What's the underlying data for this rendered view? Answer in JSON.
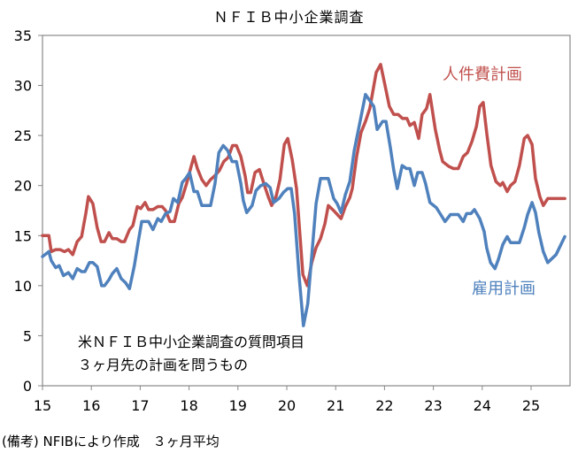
{
  "chart_data": {
    "type": "line",
    "title": "ＮＦＩＢ中小企業調査",
    "xlabel": "",
    "ylabel": "",
    "xlim": [
      15,
      25.75
    ],
    "ylim": [
      0,
      35
    ],
    "yticks": [
      0,
      5,
      10,
      15,
      20,
      25,
      30,
      35
    ],
    "xticks": [
      15,
      16,
      17,
      18,
      19,
      20,
      21,
      22,
      23,
      24,
      25
    ],
    "grid": false,
    "annotation": [
      "米ＮＦＩＢ中小企業調査の質問項目",
      "３ヶ月先の計画を問うもの"
    ],
    "footnote": "(備考) NFIBにより作成　３ヶ月平均",
    "series": [
      {
        "name": "人件費計画",
        "color": "#c0504d",
        "legend_position": "upper-right",
        "points": [
          [
            15.0,
            15
          ],
          [
            15.13,
            15
          ],
          [
            15.18,
            13.4
          ],
          [
            15.27,
            13.6
          ],
          [
            15.36,
            13.6
          ],
          [
            15.45,
            13.4
          ],
          [
            15.53,
            13.6
          ],
          [
            15.62,
            13.1
          ],
          [
            15.71,
            14.4
          ],
          [
            15.8,
            14.9
          ],
          [
            15.89,
            17.3
          ],
          [
            15.94,
            18.9
          ],
          [
            16.03,
            18.2
          ],
          [
            16.12,
            15.8
          ],
          [
            16.2,
            14.4
          ],
          [
            16.27,
            14.4
          ],
          [
            16.36,
            15.3
          ],
          [
            16.43,
            14.7
          ],
          [
            16.52,
            14.7
          ],
          [
            16.61,
            14.4
          ],
          [
            16.68,
            14.4
          ],
          [
            16.78,
            15.6
          ],
          [
            16.85,
            16
          ],
          [
            16.94,
            17.9
          ],
          [
            17.01,
            17.7
          ],
          [
            17.1,
            18.3
          ],
          [
            17.17,
            17.6
          ],
          [
            17.26,
            17.6
          ],
          [
            17.36,
            17.9
          ],
          [
            17.45,
            17.9
          ],
          [
            17.52,
            17.5
          ],
          [
            17.61,
            16.4
          ],
          [
            17.7,
            16.4
          ],
          [
            17.79,
            18.2
          ],
          [
            17.86,
            18.8
          ],
          [
            17.95,
            20.2
          ],
          [
            18.03,
            21.7
          ],
          [
            18.1,
            22.9
          ],
          [
            18.17,
            21.7
          ],
          [
            18.26,
            20.6
          ],
          [
            18.35,
            20
          ],
          [
            18.44,
            20.6
          ],
          [
            18.53,
            21
          ],
          [
            18.62,
            21.5
          ],
          [
            18.71,
            22.4
          ],
          [
            18.8,
            22.8
          ],
          [
            18.89,
            24
          ],
          [
            18.97,
            24
          ],
          [
            19.06,
            22.9
          ],
          [
            19.15,
            20.9
          ],
          [
            19.2,
            19.3
          ],
          [
            19.26,
            19.3
          ],
          [
            19.35,
            21.3
          ],
          [
            19.44,
            21.6
          ],
          [
            19.53,
            20.2
          ],
          [
            19.62,
            18.9
          ],
          [
            19.69,
            18
          ],
          [
            19.78,
            18.9
          ],
          [
            19.86,
            20.6
          ],
          [
            19.95,
            24.1
          ],
          [
            20.02,
            24.7
          ],
          [
            20.11,
            22.6
          ],
          [
            20.2,
            19.7
          ],
          [
            20.33,
            11.1
          ],
          [
            20.42,
            10
          ],
          [
            20.51,
            12.3
          ],
          [
            20.6,
            13.8
          ],
          [
            20.69,
            14.7
          ],
          [
            20.78,
            16.2
          ],
          [
            20.85,
            18
          ],
          [
            20.96,
            17.5
          ],
          [
            21.11,
            16.7
          ],
          [
            21.2,
            17.9
          ],
          [
            21.29,
            18.8
          ],
          [
            21.34,
            19.7
          ],
          [
            21.43,
            22.9
          ],
          [
            21.52,
            25.3
          ],
          [
            21.61,
            26.4
          ],
          [
            21.7,
            27.7
          ],
          [
            21.83,
            31.3
          ],
          [
            21.92,
            32.1
          ],
          [
            22.01,
            30
          ],
          [
            22.1,
            27.9
          ],
          [
            22.19,
            27.1
          ],
          [
            22.28,
            27.1
          ],
          [
            22.37,
            26.7
          ],
          [
            22.46,
            26.7
          ],
          [
            22.52,
            26
          ],
          [
            22.61,
            26.3
          ],
          [
            22.7,
            24.7
          ],
          [
            22.77,
            27.1
          ],
          [
            22.86,
            27.7
          ],
          [
            22.93,
            29.1
          ],
          [
            23.04,
            25.6
          ],
          [
            23.13,
            23.5
          ],
          [
            23.19,
            22.4
          ],
          [
            23.32,
            21.9
          ],
          [
            23.41,
            21.7
          ],
          [
            23.51,
            21.7
          ],
          [
            23.61,
            22.9
          ],
          [
            23.7,
            23.3
          ],
          [
            23.79,
            24.4
          ],
          [
            23.88,
            25.9
          ],
          [
            23.95,
            27.9
          ],
          [
            24.02,
            28.3
          ],
          [
            24.09,
            25.3
          ],
          [
            24.18,
            22
          ],
          [
            24.28,
            20.4
          ],
          [
            24.37,
            20
          ],
          [
            24.42,
            20.3
          ],
          [
            24.51,
            19.4
          ],
          [
            24.58,
            20
          ],
          [
            24.67,
            20.4
          ],
          [
            24.76,
            22
          ],
          [
            24.86,
            24.7
          ],
          [
            24.93,
            25
          ],
          [
            25.02,
            24.1
          ],
          [
            25.09,
            20.7
          ],
          [
            25.18,
            18.9
          ],
          [
            25.25,
            18
          ],
          [
            25.34,
            18.7
          ],
          [
            25.69,
            18.7
          ]
        ]
      },
      {
        "name": "雇用計画",
        "color": "#4f81bd",
        "legend_position": "lower-right",
        "points": [
          [
            15.0,
            12.9
          ],
          [
            15.13,
            13.4
          ],
          [
            15.18,
            12.5
          ],
          [
            15.27,
            11.8
          ],
          [
            15.34,
            12
          ],
          [
            15.43,
            11
          ],
          [
            15.53,
            11.3
          ],
          [
            15.62,
            10.7
          ],
          [
            15.71,
            11.7
          ],
          [
            15.8,
            11.4
          ],
          [
            15.87,
            11.4
          ],
          [
            15.96,
            12.3
          ],
          [
            16.03,
            12.3
          ],
          [
            16.12,
            11.9
          ],
          [
            16.21,
            10
          ],
          [
            16.27,
            10
          ],
          [
            16.36,
            10.6
          ],
          [
            16.43,
            11.2
          ],
          [
            16.52,
            11.7
          ],
          [
            16.61,
            10.7
          ],
          [
            16.7,
            10.3
          ],
          [
            16.78,
            9.7
          ],
          [
            16.88,
            12
          ],
          [
            16.96,
            14.4
          ],
          [
            17.03,
            16.4
          ],
          [
            17.17,
            16.4
          ],
          [
            17.26,
            15.6
          ],
          [
            17.36,
            16.7
          ],
          [
            17.43,
            16.4
          ],
          [
            17.52,
            17.2
          ],
          [
            17.61,
            17.4
          ],
          [
            17.68,
            18.7
          ],
          [
            17.77,
            18.3
          ],
          [
            17.86,
            20.3
          ],
          [
            17.93,
            20.7
          ],
          [
            18.01,
            21.3
          ],
          [
            18.1,
            19.4
          ],
          [
            18.17,
            19.4
          ],
          [
            18.26,
            18
          ],
          [
            18.44,
            18
          ],
          [
            18.53,
            20.2
          ],
          [
            18.61,
            23.3
          ],
          [
            18.7,
            24
          ],
          [
            18.79,
            23.5
          ],
          [
            18.88,
            22.4
          ],
          [
            18.97,
            22.4
          ],
          [
            19.06,
            20.2
          ],
          [
            19.11,
            18.5
          ],
          [
            19.18,
            17.3
          ],
          [
            19.29,
            18
          ],
          [
            19.37,
            19.5
          ],
          [
            19.47,
            20
          ],
          [
            19.57,
            20.2
          ],
          [
            19.66,
            19.8
          ],
          [
            19.73,
            18.3
          ],
          [
            19.84,
            18.7
          ],
          [
            19.93,
            19.3
          ],
          [
            20.02,
            19.7
          ],
          [
            20.09,
            19.7
          ],
          [
            20.16,
            17.2
          ],
          [
            20.25,
            11.1
          ],
          [
            20.34,
            6
          ],
          [
            20.43,
            8.2
          ],
          [
            20.6,
            18.2
          ],
          [
            20.69,
            20.7
          ],
          [
            20.85,
            20.7
          ],
          [
            20.96,
            18.7
          ],
          [
            21.03,
            18.2
          ],
          [
            21.11,
            17.3
          ],
          [
            21.2,
            19.1
          ],
          [
            21.29,
            20.4
          ],
          [
            21.38,
            23.5
          ],
          [
            21.5,
            26.4
          ],
          [
            21.61,
            29.1
          ],
          [
            21.78,
            27.9
          ],
          [
            21.85,
            25.6
          ],
          [
            21.96,
            26.4
          ],
          [
            22.03,
            26.4
          ],
          [
            22.12,
            23.8
          ],
          [
            22.19,
            21.5
          ],
          [
            22.26,
            19.7
          ],
          [
            22.36,
            22
          ],
          [
            22.45,
            21.7
          ],
          [
            22.52,
            21.7
          ],
          [
            22.61,
            20
          ],
          [
            22.68,
            21.3
          ],
          [
            22.77,
            21.3
          ],
          [
            22.84,
            20.2
          ],
          [
            22.93,
            18.3
          ],
          [
            23.06,
            17.8
          ],
          [
            23.15,
            17.1
          ],
          [
            23.24,
            16.4
          ],
          [
            23.35,
            17.1
          ],
          [
            23.51,
            17.1
          ],
          [
            23.61,
            16.4
          ],
          [
            23.68,
            17.2
          ],
          [
            23.77,
            17.2
          ],
          [
            23.84,
            17.6
          ],
          [
            23.95,
            16.7
          ],
          [
            24.04,
            15.4
          ],
          [
            24.09,
            13.8
          ],
          [
            24.17,
            12.3
          ],
          [
            24.26,
            11.7
          ],
          [
            24.33,
            12.6
          ],
          [
            24.42,
            14.1
          ],
          [
            24.51,
            14.9
          ],
          [
            24.58,
            14.3
          ],
          [
            24.76,
            14.3
          ],
          [
            24.86,
            15.8
          ],
          [
            24.93,
            17.1
          ],
          [
            25.02,
            18.3
          ],
          [
            25.09,
            17.3
          ],
          [
            25.16,
            15.3
          ],
          [
            25.25,
            13.4
          ],
          [
            25.34,
            12.3
          ],
          [
            25.51,
            13.1
          ],
          [
            25.69,
            14.9
          ]
        ]
      }
    ]
  }
}
